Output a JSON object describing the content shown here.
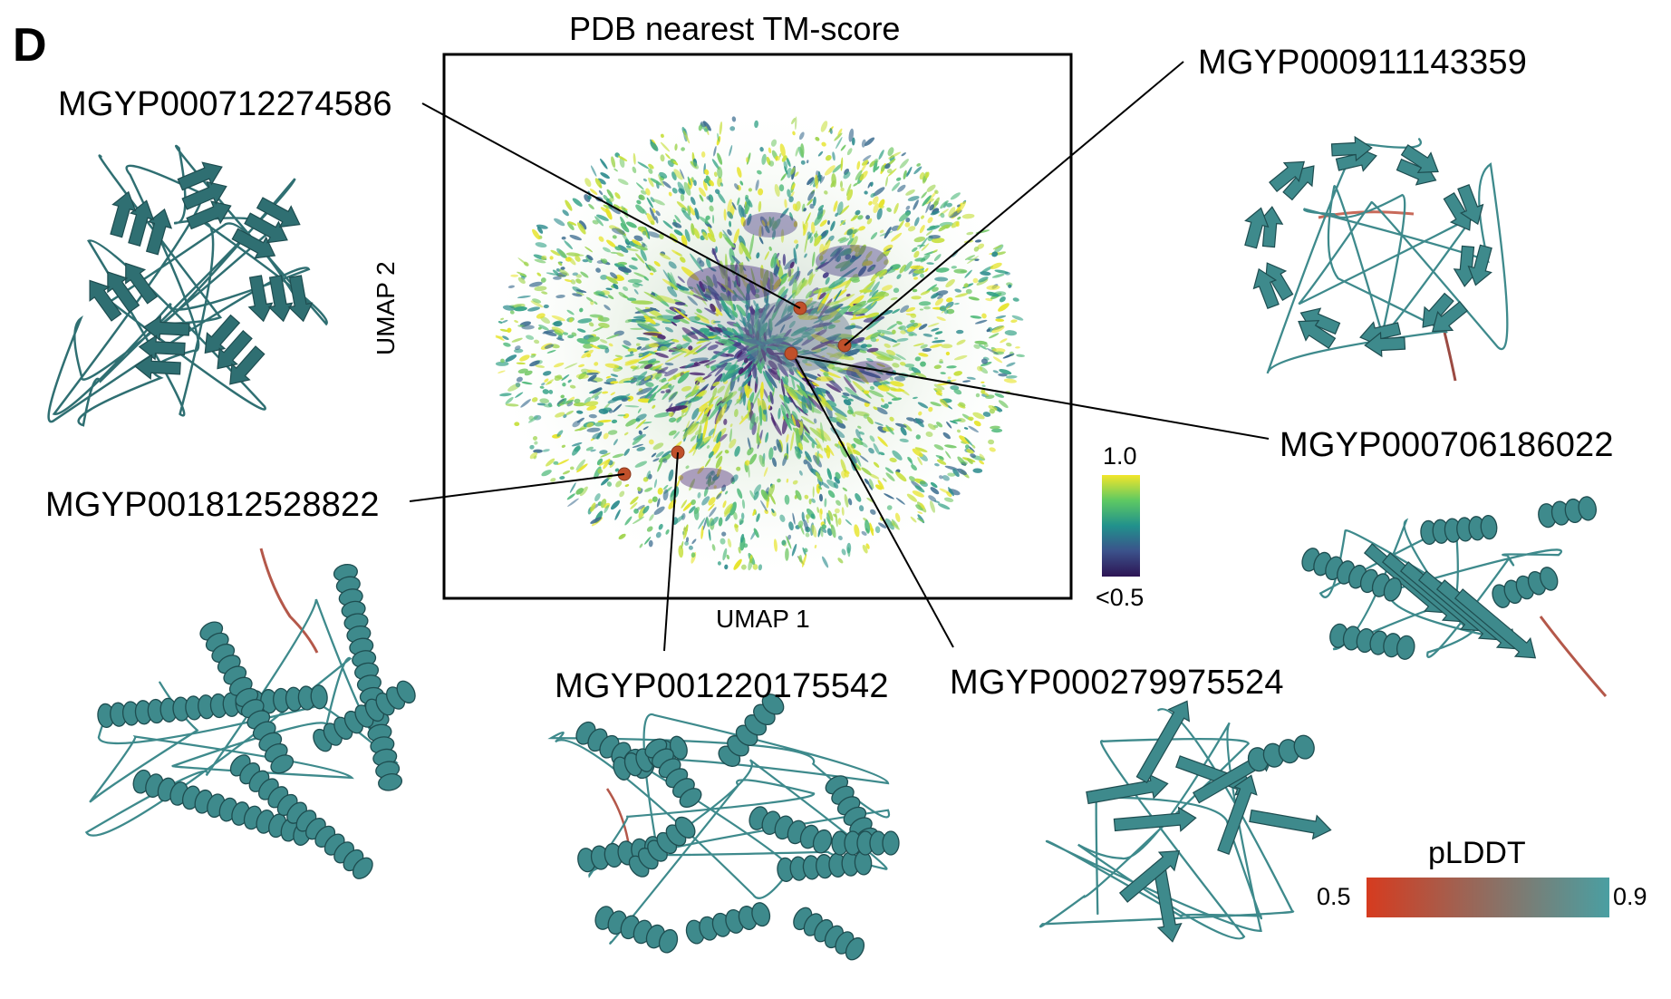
{
  "panel_label": "D",
  "umap_plot": {
    "title": "PDB nearest TM-score",
    "xlabel": "UMAP 1",
    "ylabel": "UMAP 2",
    "colorbar": {
      "max_label": "1.0",
      "min_label": "<0.5",
      "colormap": "viridis"
    },
    "highlight_color": "#c0502a"
  },
  "structures": [
    {
      "id": "MGYP000712274586",
      "fold": "beta-propeller",
      "plddt_color": "#2f6f72"
    },
    {
      "id": "MGYP000911143359",
      "fold": "beta-propeller",
      "plddt_color": "#3e8a8c"
    },
    {
      "id": "MGYP000706186022",
      "fold": "alpha-beta",
      "plddt_color": "#3e8a8c"
    },
    {
      "id": "MGYP001812528822",
      "fold": "alpha-helical bundle",
      "plddt_color": "#3e8a8c"
    },
    {
      "id": "MGYP001220175542",
      "fold": "alpha-helical repeat",
      "plddt_color": "#3e8a8c"
    },
    {
      "id": "MGYP000279975524",
      "fold": "beta-rich",
      "plddt_color": "#3e8a8c"
    }
  ],
  "plddt_legend": {
    "title": "pLDDT",
    "min_label": "0.5",
    "max_label": "0.9",
    "low_color": "#d63b1f",
    "high_color": "#4a9fa2"
  }
}
